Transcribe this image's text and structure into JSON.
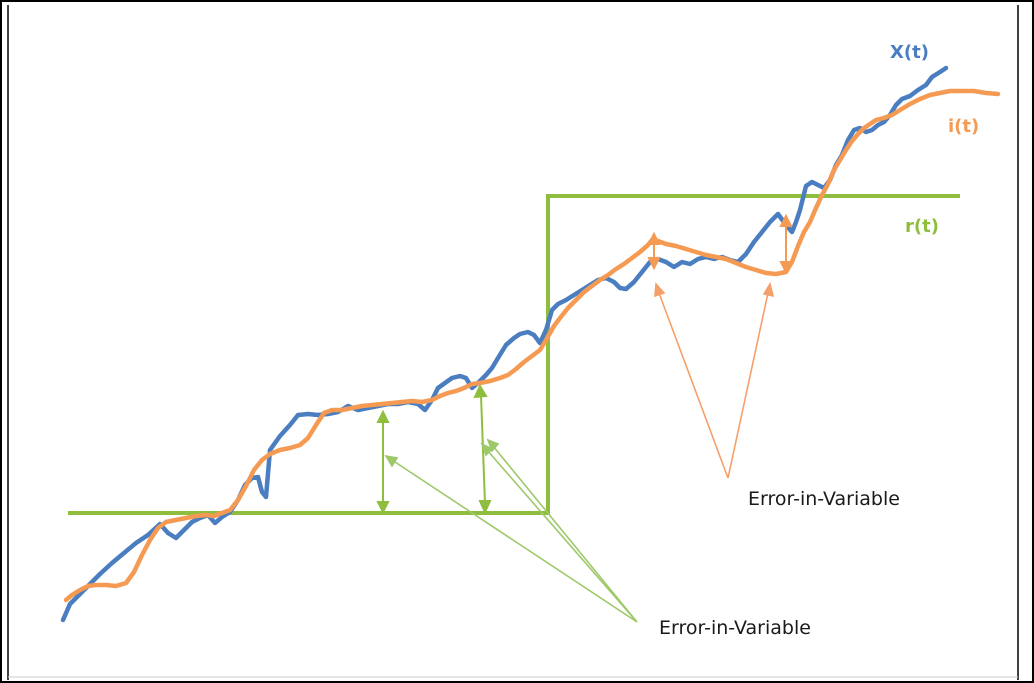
{
  "labels": {
    "x_series": "X(t)",
    "i_series": "i(t)",
    "r_series": "r(t)",
    "annotation_left": "Error-in-Variable",
    "annotation_right": "Error-in-Variable"
  },
  "colors": {
    "x_series": "#4a7ec0",
    "i_series": "#f59a52",
    "r_series": "#8fbe3e",
    "left_pointer_lines": "#9ec96a",
    "right_pointer_lines": "#f5a06a",
    "border": "#000000"
  }
}
